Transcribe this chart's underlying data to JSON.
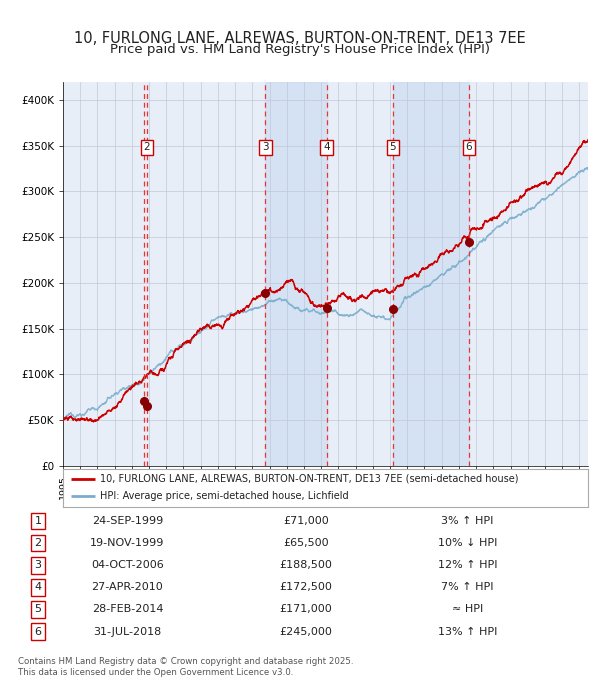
{
  "title": "10, FURLONG LANE, ALREWAS, BURTON-ON-TRENT, DE13 7EE",
  "subtitle": "Price paid vs. HM Land Registry's House Price Index (HPI)",
  "title_fontsize": 10.5,
  "subtitle_fontsize": 9.5,
  "background_color": "#ffffff",
  "plot_bg_color": "#e8eef8",
  "grid_color": "#c0c8d8",
  "legend_line1": "10, FURLONG LANE, ALREWAS, BURTON-ON-TRENT, DE13 7EE (semi-detached house)",
  "legend_line2": "HPI: Average price, semi-detached house, Lichfield",
  "red_line_color": "#cc0000",
  "blue_line_color": "#7aadcc",
  "sale_marker_color": "#880000",
  "vline_color": "#ee3333",
  "shade_color": "#c8daf0",
  "transactions": [
    {
      "num": 1,
      "date": "24-SEP-1999",
      "price": 71000,
      "rel": "3% ↑ HPI",
      "year": 1999.73
    },
    {
      "num": 2,
      "date": "19-NOV-1999",
      "price": 65500,
      "rel": "10% ↓ HPI",
      "year": 1999.88
    },
    {
      "num": 3,
      "date": "04-OCT-2006",
      "price": 188500,
      "rel": "12% ↑ HPI",
      "year": 2006.76
    },
    {
      "num": 4,
      "date": "27-APR-2010",
      "price": 172500,
      "rel": "7% ↑ HPI",
      "year": 2010.32
    },
    {
      "num": 5,
      "date": "28-FEB-2014",
      "price": 171000,
      "rel": "≈ HPI",
      "year": 2014.16
    },
    {
      "num": 6,
      "date": "31-JUL-2018",
      "price": 245000,
      "rel": "13% ↑ HPI",
      "year": 2018.58
    }
  ],
  "ylim": [
    0,
    420000
  ],
  "yticks": [
    0,
    50000,
    100000,
    150000,
    200000,
    250000,
    300000,
    350000,
    400000
  ],
  "xlim": [
    1995.0,
    2025.5
  ],
  "footer": "Contains HM Land Registry data © Crown copyright and database right 2025.\nThis data is licensed under the Open Government Licence v3.0."
}
